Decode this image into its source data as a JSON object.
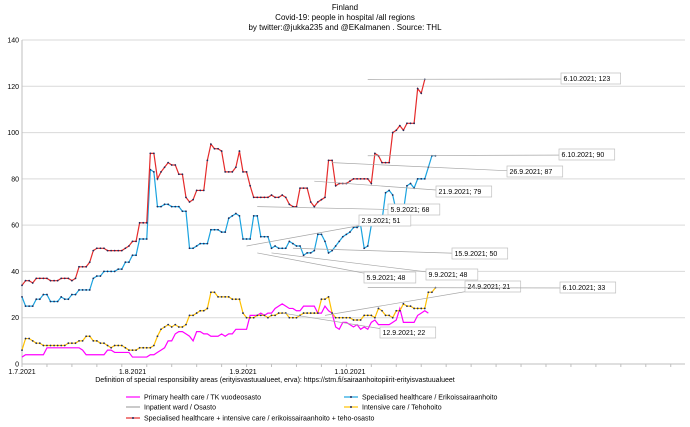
{
  "chart_data": {
    "type": "line",
    "title": "Finland",
    "subtitle": "Covid-19: people in hospital /all regions",
    "byline": "by twitter:@jukka235 and @EKalmanen . Source: THL",
    "xlabel": "Definition of special responsibility areas (erityisvastuualueet, erva):  https://stm.fi/sairaanhoitopiirit-erityisvastuualueet",
    "x_start": "1.7.2021",
    "x_ticks": [
      "1.7.2021",
      "1.8.2021",
      "1.9.2021",
      "1.10.2021"
    ],
    "ylim": [
      0,
      140
    ],
    "y_ticks": [
      0,
      20,
      40,
      60,
      80,
      100,
      120,
      140
    ],
    "grid": true,
    "legend_position": "bottom",
    "series": [
      {
        "name": "Primary health care / TK vuodeosasto",
        "color": "#ff00ff",
        "markers": false,
        "values": [
          3,
          4,
          4,
          4,
          4,
          4,
          4,
          7,
          7,
          7,
          7,
          7,
          7,
          7,
          7,
          7,
          7,
          6,
          4,
          4,
          4,
          4,
          4,
          4,
          6,
          6,
          5,
          5,
          5,
          5,
          5,
          3,
          3,
          3,
          3,
          3,
          4,
          4,
          5,
          6,
          7,
          10,
          10,
          13,
          14,
          14,
          13,
          12,
          10,
          14,
          14,
          13,
          13,
          12,
          12,
          12,
          13,
          12,
          13,
          13,
          15,
          15,
          15,
          15,
          21,
          21,
          21,
          22,
          21,
          22,
          22,
          24,
          25,
          26,
          25,
          24,
          24,
          23,
          23,
          25,
          25,
          25,
          25,
          22,
          22,
          25,
          23,
          22,
          16,
          15,
          18,
          18,
          17,
          16,
          17,
          15,
          16,
          15,
          18,
          19,
          17,
          17,
          17,
          17,
          18,
          19,
          24,
          18,
          18,
          18,
          18,
          21,
          22,
          23,
          22
        ]
      },
      {
        "name": "Specialised healthcare / Erikoissairaanhoito",
        "color": "#1aa3e0",
        "markers": true,
        "values": [
          29,
          25,
          25,
          25,
          28,
          28,
          30,
          30,
          27,
          27,
          27,
          29,
          28,
          28,
          30,
          30,
          32,
          32,
          32,
          32,
          37,
          38,
          38,
          40,
          40,
          40,
          40,
          41,
          41,
          44,
          44,
          47,
          47,
          54,
          54,
          54,
          84,
          83,
          68,
          68,
          69,
          69,
          68,
          68,
          68,
          66,
          66,
          50,
          50,
          51,
          52,
          52,
          52,
          58,
          58,
          58,
          57,
          57,
          63,
          64,
          65,
          64,
          54,
          54,
          54,
          64,
          64,
          55,
          55,
          55,
          50,
          51,
          50,
          50,
          50,
          53,
          52,
          51,
          51,
          47,
          48,
          48,
          49,
          56,
          56,
          53,
          48,
          49,
          51,
          53,
          55,
          56,
          57,
          59,
          59,
          60,
          50,
          51,
          60,
          60,
          61,
          62,
          74,
          75,
          73,
          66,
          66,
          66,
          77,
          78,
          76,
          80,
          80,
          80,
          85,
          90,
          90
        ]
      },
      {
        "name": "Inpatient ward / Osasto",
        "color": "#a6a6a6",
        "markers": false,
        "values": []
      },
      {
        "name": "Intensive care / Tehohoito",
        "color": "#ffc000",
        "markers": true,
        "values": [
          6,
          11,
          11,
          10,
          9,
          9,
          8,
          8,
          8,
          8,
          8,
          8,
          8,
          9,
          9,
          9,
          10,
          10,
          12,
          12,
          10,
          10,
          9,
          9,
          8,
          7,
          8,
          8,
          8,
          7,
          6,
          6,
          6,
          7,
          7,
          7,
          7,
          8,
          12,
          15,
          16,
          17,
          16,
          17,
          16,
          16,
          17,
          21,
          21,
          22,
          23,
          23,
          24,
          31,
          31,
          29,
          29,
          29,
          29,
          28,
          28,
          28,
          22,
          20,
          20,
          20,
          21,
          21,
          21,
          20,
          21,
          21,
          22,
          22,
          22,
          20,
          20,
          20,
          21,
          22,
          22,
          22,
          22,
          22,
          28,
          28,
          29,
          22,
          20,
          20,
          20,
          20,
          20,
          19,
          19,
          19,
          21,
          21,
          21,
          20,
          24,
          23,
          21,
          21,
          20,
          23,
          23,
          26,
          25,
          25,
          24,
          24,
          24,
          24,
          31,
          31,
          33
        ]
      },
      {
        "name": "Specialised healthcare + intensive care / erikoissairaanhoito + teho-osasto",
        "color": "#e52b2b",
        "markers": true,
        "values": [
          34,
          36,
          36,
          35,
          37,
          37,
          37,
          37,
          36,
          36,
          36,
          37,
          37,
          37,
          36,
          37,
          42,
          42,
          42,
          44,
          49,
          50,
          50,
          50,
          49,
          49,
          49,
          49,
          49,
          50,
          51,
          53,
          53,
          61,
          61,
          61,
          91,
          91,
          80,
          83,
          85,
          87,
          86,
          86,
          82,
          82,
          72,
          70,
          71,
          75,
          75,
          75,
          88,
          95,
          93,
          93,
          92,
          83,
          83,
          83,
          85,
          92,
          83,
          83,
          77,
          72,
          72,
          72,
          72,
          72,
          73,
          72,
          72,
          73,
          72,
          69,
          68,
          68,
          76,
          76,
          76,
          70,
          68,
          70,
          71,
          72,
          88,
          88,
          77,
          78,
          78,
          78,
          79,
          80,
          80,
          80,
          80,
          80,
          78,
          91,
          90,
          87,
          87,
          87,
          100,
          101,
          103,
          101,
          104,
          104,
          104,
          119,
          117,
          123
        ]
      }
    ],
    "annotations": [
      {
        "text": "6.10.2021; 123",
        "x": "6.10.2021",
        "y": 123
      },
      {
        "text": "6.10.2021; 90",
        "x": "6.10.2021",
        "y": 90
      },
      {
        "text": "26.9.2021; 87",
        "x": "26.9.2021",
        "y": 87
      },
      {
        "text": "21.9.2021; 79",
        "x": "21.9.2021",
        "y": 79
      },
      {
        "text": "5.9.2021; 68",
        "x": "5.9.2021",
        "y": 68
      },
      {
        "text": "2.9.2021; 51",
        "x": "2.9.2021",
        "y": 51
      },
      {
        "text": "15.9.2021; 50",
        "x": "15.9.2021",
        "y": 50
      },
      {
        "text": "5.9.2021; 48",
        "x": "5.9.2021",
        "y": 48
      },
      {
        "text": "9.9.2021; 48",
        "x": "9.9.2021",
        "y": 48
      },
      {
        "text": "24.9.2021; 21",
        "x": "24.9.2021",
        "y": 21
      },
      {
        "text": "6.10.2021; 33",
        "x": "6.10.2021",
        "y": 33
      },
      {
        "text": "12.9.2021; 22",
        "x": "12.9.2021",
        "y": 22
      }
    ]
  }
}
